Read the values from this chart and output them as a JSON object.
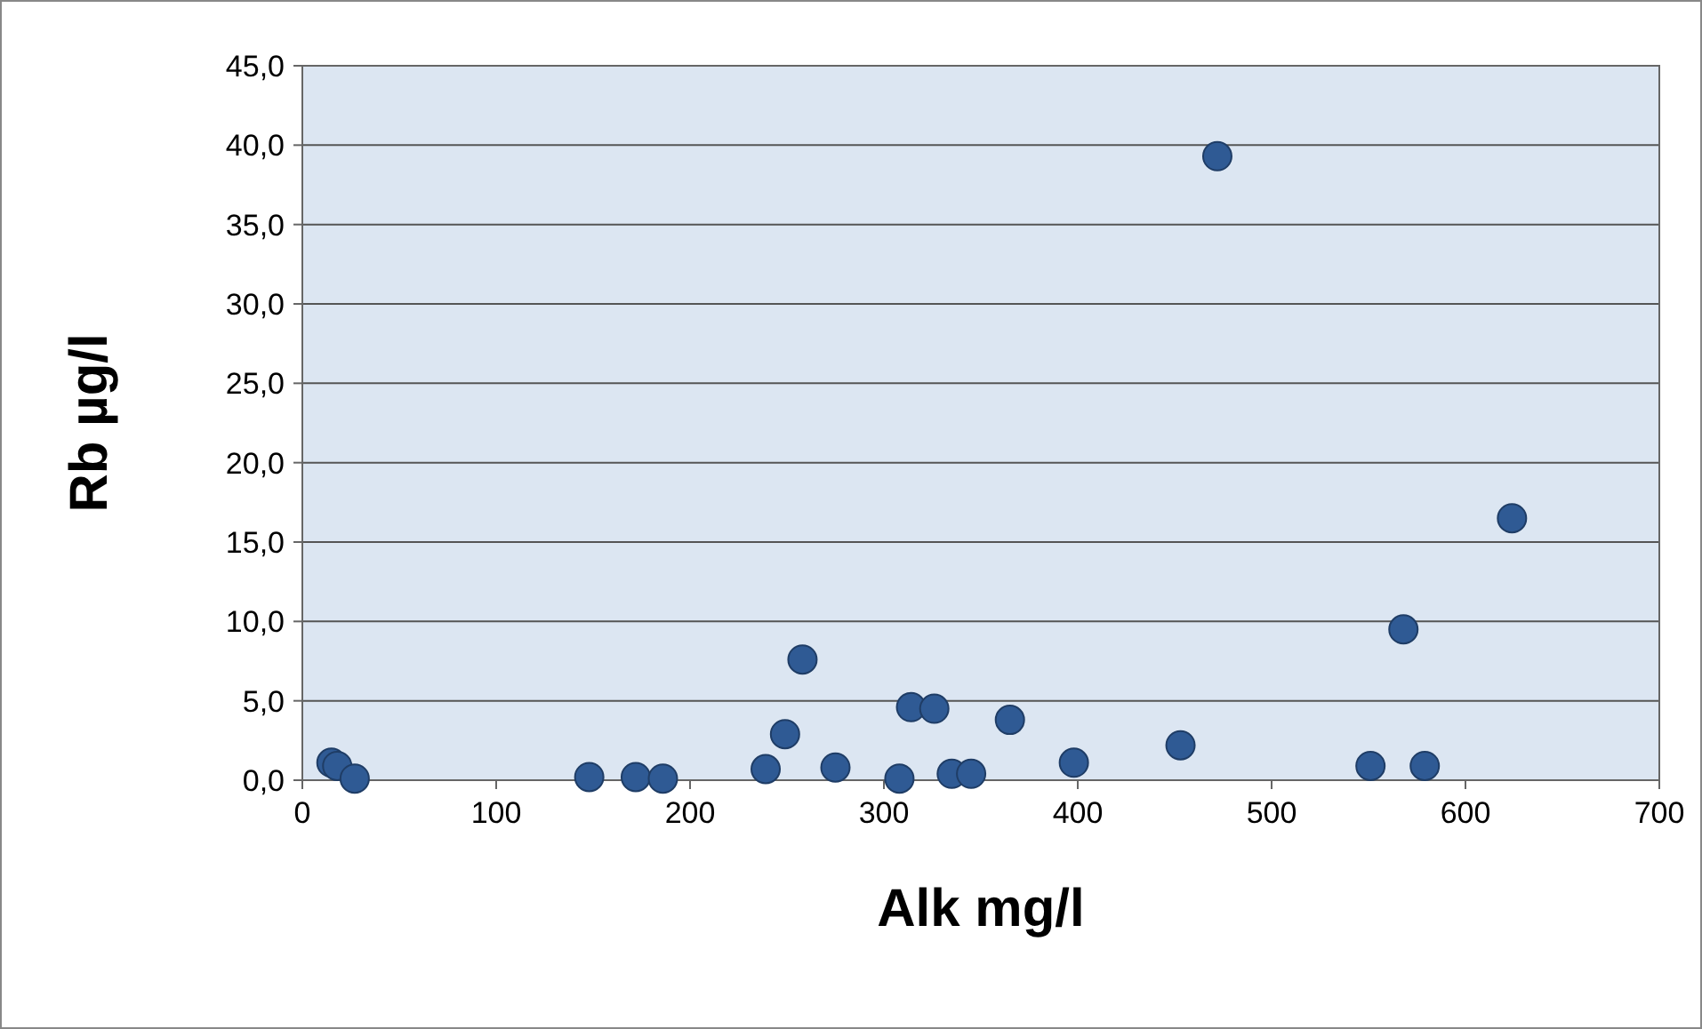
{
  "chart_data": {
    "type": "scatter",
    "xlabel": "Alk mg/l",
    "ylabel": "Rb µg/l",
    "xlim": [
      0,
      700
    ],
    "ylim": [
      0,
      45
    ],
    "xticks": [
      0,
      100,
      200,
      300,
      400,
      500,
      600,
      700
    ],
    "yticks": [
      {
        "value": 0,
        "label": "0,0"
      },
      {
        "value": 5,
        "label": "5,0"
      },
      {
        "value": 10,
        "label": "10,0"
      },
      {
        "value": 15,
        "label": "15,0"
      },
      {
        "value": 20,
        "label": "20,0"
      },
      {
        "value": 25,
        "label": "25,0"
      },
      {
        "value": 30,
        "label": "30,0"
      },
      {
        "value": 35,
        "label": "35,0"
      },
      {
        "value": 40,
        "label": "40,0"
      },
      {
        "value": 45,
        "label": "45,0"
      }
    ],
    "grid": "y",
    "marker": "circle",
    "series": [
      {
        "color": "#2f5a94",
        "x": [
          15,
          18,
          27,
          148,
          172,
          186,
          239,
          249,
          258,
          275,
          308,
          314,
          326,
          335,
          345,
          365,
          398,
          453,
          472,
          551,
          568,
          579,
          624
        ],
        "values": [
          1.1,
          0.9,
          0.1,
          0.2,
          0.2,
          0.1,
          0.7,
          2.9,
          7.6,
          0.8,
          0.1,
          4.6,
          4.5,
          0.4,
          0.4,
          3.8,
          1.1,
          2.2,
          39.3,
          0.9,
          9.5,
          0.9,
          16.5
        ]
      }
    ]
  }
}
